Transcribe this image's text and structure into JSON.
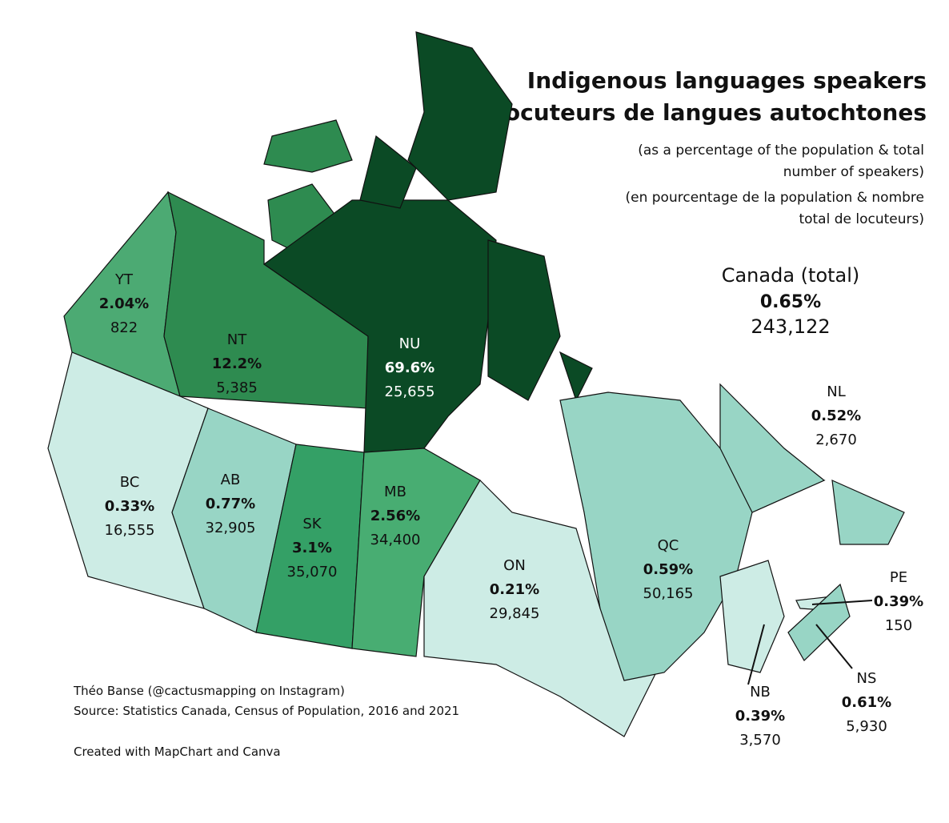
{
  "header": {
    "title": [
      "Indigenous languages speakers",
      "Locuteurs de langues autochtones"
    ],
    "subtitle": [
      "(as a percentage of the population & total",
      "number of speakers)",
      "(en pourcentage de la population & nombre",
      "total de locuteurs)"
    ]
  },
  "total": {
    "name": "Canada (total)",
    "share": "0.65%",
    "count": "243,122"
  },
  "regions": [
    {
      "code": "YT",
      "share": "2.04%",
      "count": "822",
      "color": "#4caa73"
    },
    {
      "code": "NT",
      "share": "12.2%",
      "count": "5,385",
      "color": "#2e8b50"
    },
    {
      "code": "NU",
      "share": "69.6%",
      "count": "25,655",
      "color": "#0b4a25"
    },
    {
      "code": "BC",
      "share": "0.33%",
      "count": "16,555",
      "color": "#cdece5"
    },
    {
      "code": "AB",
      "share": "0.77%",
      "count": "32,905",
      "color": "#98d5c5"
    },
    {
      "code": "SK",
      "share": "3.1%",
      "count": "35,070",
      "color": "#34a066"
    },
    {
      "code": "MB",
      "share": "2.56%",
      "count": "34,400",
      "color": "#48ad72"
    },
    {
      "code": "ON",
      "share": "0.21%",
      "count": "29,845",
      "color": "#cdece5"
    },
    {
      "code": "QC",
      "share": "0.59%",
      "count": "50,165",
      "color": "#98d5c5"
    },
    {
      "code": "NL",
      "share": "0.52%",
      "count": "2,670",
      "color": "#98d5c5"
    },
    {
      "code": "PE",
      "share": "0.39%",
      "count": "150",
      "color": "#cdece5"
    },
    {
      "code": "NB",
      "share": "0.39%",
      "count": "3,570",
      "color": "#cdece5"
    },
    {
      "code": "NS",
      "share": "0.61%",
      "count": "5,930",
      "color": "#98d5c5"
    }
  ],
  "credits": [
    "Théo Banse (@cactusmapping on Instagram)",
    "Source: Statistics Canada, Census of Population, 2016 and 2021",
    "Created with MapChart and Canva"
  ]
}
